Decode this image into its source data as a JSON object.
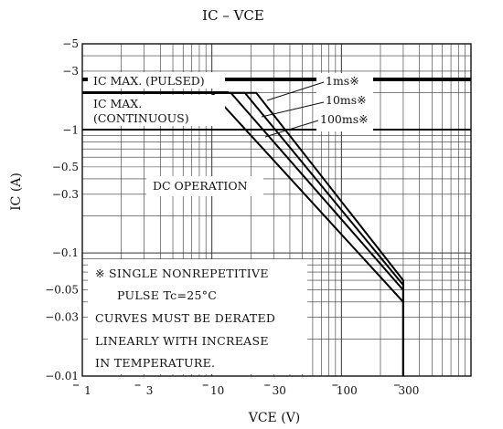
{
  "chart_data": {
    "type": "line",
    "title": "IC  –  VCE",
    "xlabel": "VCE  (V)",
    "ylabel": "IC  (A)",
    "x_scale": "log",
    "y_scale": "log",
    "xlim": [
      1,
      1000
    ],
    "ylim": [
      0.01,
      5
    ],
    "x_ticks": [
      {
        "value": 1,
        "label": "1"
      },
      {
        "value": 3,
        "label": "3"
      },
      {
        "value": 10,
        "label": "10"
      },
      {
        "value": 30,
        "label": "30"
      },
      {
        "value": 100,
        "label": "100"
      },
      {
        "value": 300,
        "label": "300"
      }
    ],
    "y_ticks": [
      {
        "value": 5,
        "label": "5"
      },
      {
        "value": 3,
        "label": "3"
      },
      {
        "value": 1,
        "label": "1"
      },
      {
        "value": 0.5,
        "label": "0.5"
      },
      {
        "value": 0.3,
        "label": "0.3"
      },
      {
        "value": 0.1,
        "label": "0.1"
      },
      {
        "value": 0.05,
        "label": "0.05"
      },
      {
        "value": 0.03,
        "label": "0.03"
      },
      {
        "value": 0.01,
        "label": "0.01"
      }
    ],
    "grid": true,
    "series": [
      {
        "name": "1ms※",
        "points": [
          [
            1,
            2.0
          ],
          [
            22,
            2.0
          ],
          [
            300,
            0.06
          ],
          [
            300,
            0.01
          ]
        ]
      },
      {
        "name": "10ms※",
        "points": [
          [
            1,
            2.0
          ],
          [
            18,
            2.0
          ],
          [
            300,
            0.055
          ],
          [
            300,
            0.01
          ]
        ]
      },
      {
        "name": "100ms※",
        "points": [
          [
            1,
            2.0
          ],
          [
            14,
            2.0
          ],
          [
            300,
            0.05
          ],
          [
            300,
            0.01
          ]
        ]
      },
      {
        "name": "DC OPERATION",
        "points": [
          [
            1,
            2.0
          ],
          [
            10,
            2.0
          ],
          [
            300,
            0.04
          ],
          [
            300,
            0.01
          ]
        ]
      }
    ],
    "reference_lines": [
      {
        "label": "IC MAX. (PULSED)",
        "y": 2.5
      },
      {
        "label": "IC MAX. (CONTINUOUS)",
        "y": 1.0
      }
    ]
  },
  "labels": {
    "ic_max_pulsed": "IC MAX. (PULSED)",
    "ic_max_continuous_1": "IC MAX.",
    "ic_max_continuous_2": "(CONTINUOUS)",
    "curve_1ms": "1ms※",
    "curve_10ms": "10ms※",
    "curve_100ms": "100ms※",
    "dc_operation": "DC OPERATION"
  },
  "notes": [
    "※  SINGLE NONREPETITIVE",
    "PULSE  Tc=25°C",
    "CURVES MUST BE DERATED",
    "LINEARLY WITH INCREASE",
    "IN TEMPERATURE."
  ]
}
